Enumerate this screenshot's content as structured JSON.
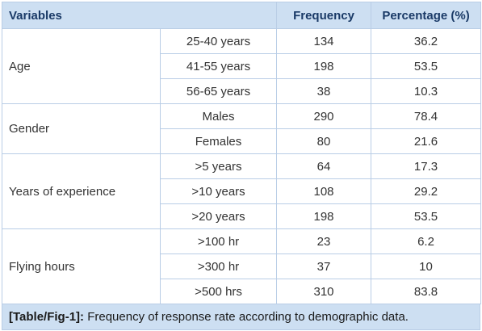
{
  "headers": {
    "variables": "Variables",
    "frequency": "Frequency",
    "percentage": "Percentage (%)"
  },
  "groups": [
    {
      "label": "Age",
      "rows": [
        {
          "category": "25-40 years",
          "frequency": "134",
          "percentage": "36.2"
        },
        {
          "category": "41-55 years",
          "frequency": "198",
          "percentage": "53.5"
        },
        {
          "category": "56-65 years",
          "frequency": "38",
          "percentage": "10.3"
        }
      ]
    },
    {
      "label": "Gender",
      "rows": [
        {
          "category": "Males",
          "frequency": "290",
          "percentage": "78.4"
        },
        {
          "category": "Females",
          "frequency": "80",
          "percentage": "21.6"
        }
      ]
    },
    {
      "label": "Years of experience",
      "rows": [
        {
          "category": ">5 years",
          "frequency": "64",
          "percentage": "17.3"
        },
        {
          "category": ">10 years",
          "frequency": "108",
          "percentage": "29.2"
        },
        {
          "category": ">20 years",
          "frequency": "198",
          "percentage": "53.5"
        }
      ]
    },
    {
      "label": "Flying hours",
      "rows": [
        {
          "category": ">100 hr",
          "frequency": "23",
          "percentage": "6.2"
        },
        {
          "category": ">300 hr",
          "frequency": "37",
          "percentage": "10"
        },
        {
          "category": ">500 hrs",
          "frequency": "310",
          "percentage": "83.8"
        }
      ]
    }
  ],
  "caption": {
    "label": "[Table/Fig-1]:",
    "text": " Frequency of response rate according to demographic data."
  }
}
